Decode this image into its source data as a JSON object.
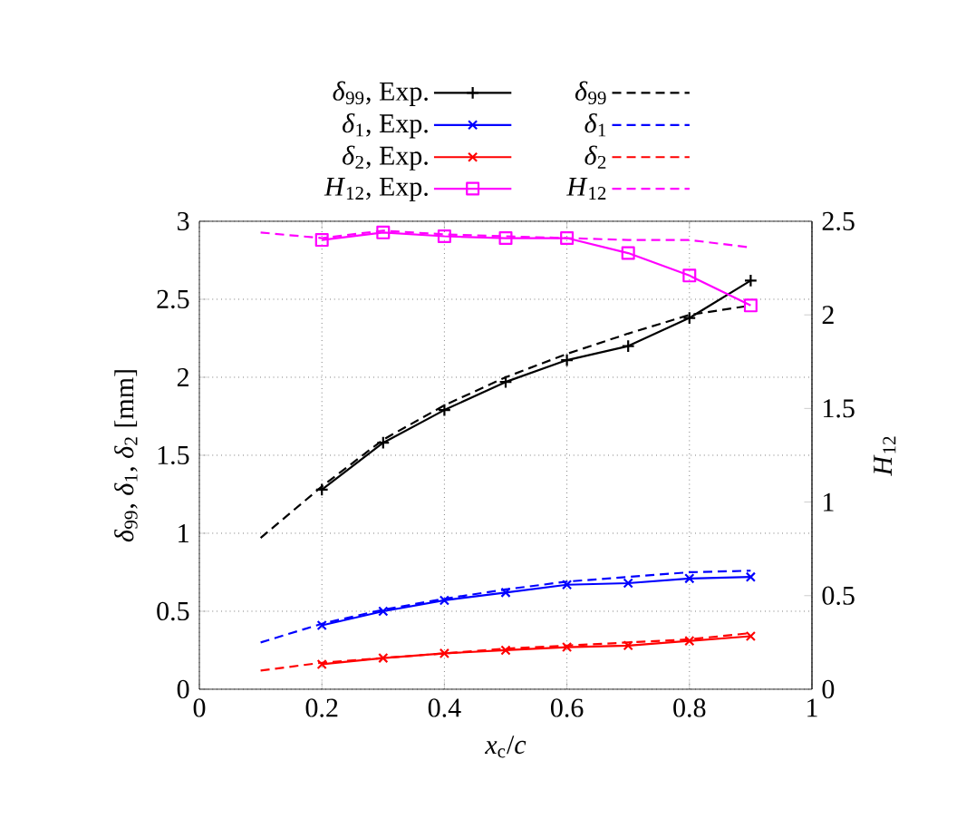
{
  "chart_data": {
    "type": "line",
    "xlabel": "*x*$_{c}$/*c*",
    "ylabel": "*δ*$_{99}$, *δ*$_{1}$, *δ*$_{2}$ [mm]",
    "y2label": "*H*$_{12}$",
    "xlim": [
      0,
      1
    ],
    "xticks": [
      0,
      0.2,
      0.4,
      0.6,
      0.8,
      1
    ],
    "ylim": [
      0,
      3
    ],
    "yticks": [
      0,
      0.5,
      1,
      1.5,
      2,
      2.5,
      3
    ],
    "y2lim": [
      0,
      2.5
    ],
    "y2ticks": [
      0,
      0.5,
      1,
      1.5,
      2,
      2.5
    ],
    "grid": true,
    "legend": "top",
    "series": [
      {
        "name": "*δ*$_{99}$, Exp.",
        "color": "#000000",
        "marker": "plus",
        "line_style": "solid",
        "x": [
          0.2,
          0.3,
          0.4,
          0.5,
          0.6,
          0.7,
          0.8,
          0.9
        ],
        "values": [
          1.28,
          1.58,
          1.79,
          1.97,
          2.11,
          2.2,
          2.38,
          2.62
        ]
      },
      {
        "name": "*δ*$_{99}$",
        "color": "#000000",
        "marker": "none",
        "line_style": "dashed",
        "x": [
          0.1,
          0.2,
          0.3,
          0.4,
          0.5,
          0.6,
          0.7,
          0.8,
          0.9
        ],
        "values": [
          0.97,
          1.3,
          1.6,
          1.82,
          2.0,
          2.15,
          2.28,
          2.4,
          2.46
        ]
      },
      {
        "name": "*δ*$_{1}$, Exp.",
        "color": "#0000ff",
        "marker": "cross",
        "line_style": "solid",
        "x": [
          0.2,
          0.3,
          0.4,
          0.5,
          0.6,
          0.7,
          0.8,
          0.9
        ],
        "values": [
          0.41,
          0.5,
          0.57,
          0.62,
          0.67,
          0.68,
          0.71,
          0.72
        ]
      },
      {
        "name": "*δ*$_{1}$",
        "color": "#0000ff",
        "marker": "none",
        "line_style": "dashed",
        "x": [
          0.1,
          0.2,
          0.3,
          0.4,
          0.5,
          0.6,
          0.7,
          0.8,
          0.9
        ],
        "values": [
          0.3,
          0.42,
          0.51,
          0.58,
          0.64,
          0.69,
          0.72,
          0.75,
          0.76
        ]
      },
      {
        "name": "*δ*$_{2}$, Exp.",
        "color": "#ff0000",
        "marker": "cross",
        "line_style": "solid",
        "x": [
          0.2,
          0.3,
          0.4,
          0.5,
          0.6,
          0.7,
          0.8,
          0.9
        ],
        "values": [
          0.16,
          0.2,
          0.23,
          0.25,
          0.27,
          0.28,
          0.31,
          0.34
        ]
      },
      {
        "name": "*δ*$_{2}$",
        "color": "#ff0000",
        "marker": "none",
        "line_style": "dashed",
        "x": [
          0.1,
          0.2,
          0.3,
          0.4,
          0.5,
          0.6,
          0.7,
          0.8,
          0.9
        ],
        "values": [
          0.12,
          0.17,
          0.2,
          0.23,
          0.26,
          0.28,
          0.3,
          0.32,
          0.36
        ]
      },
      {
        "name": "*H*$_{12}$, Exp.",
        "color": "#ff00ff",
        "marker": "square",
        "line_style": "solid",
        "axis": "y2",
        "x": [
          0.2,
          0.3,
          0.4,
          0.5,
          0.6,
          0.7,
          0.8,
          0.9
        ],
        "values": [
          2.4,
          2.44,
          2.42,
          2.41,
          2.41,
          2.33,
          2.21,
          2.05
        ]
      },
      {
        "name": "*H*$_{12}$",
        "color": "#ff00ff",
        "marker": "none",
        "line_style": "dashed",
        "axis": "y2",
        "x": [
          0.1,
          0.2,
          0.3,
          0.4,
          0.5,
          0.6,
          0.7,
          0.8,
          0.9
        ],
        "values": [
          2.44,
          2.41,
          2.45,
          2.43,
          2.42,
          2.41,
          2.4,
          2.4,
          2.36
        ]
      }
    ]
  }
}
